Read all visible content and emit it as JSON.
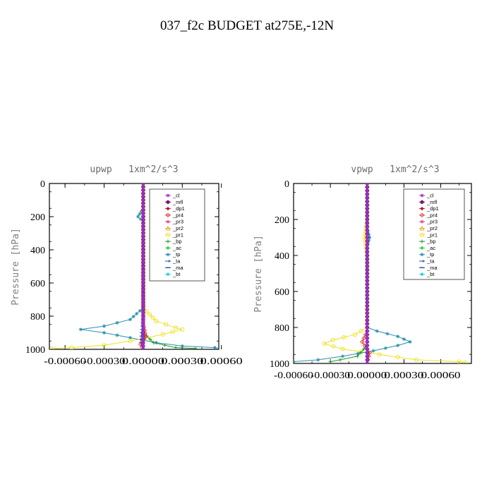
{
  "figure_title": "037_f2c  BUDGET at275E,-12N",
  "panels_meta": [
    {
      "title": "upwp   1xm^2/s^3",
      "ylabel": "Pressure [hPa]"
    },
    {
      "title": "vpwp   1xm^2/s^3",
      "ylabel": "Pressure [hPa]"
    }
  ],
  "legend": [
    {
      "name": "_cl",
      "color": "#9b30d0",
      "marker": "star"
    },
    {
      "name": "_mfl",
      "color": "#7a1070",
      "marker": "dot"
    },
    {
      "name": "_dp1",
      "color": "#b0102a",
      "marker": "diamond"
    },
    {
      "name": "_pr4",
      "color": "#e03a3a",
      "marker": "diamond-open"
    },
    {
      "name": "_pr3",
      "color": "#e04090",
      "marker": "star"
    },
    {
      "name": "_pr2",
      "color": "#f0a020",
      "marker": "triangle-open"
    },
    {
      "name": "_pr1",
      "color": "#f0e020",
      "marker": "circle-open"
    },
    {
      "name": "_bp",
      "color": "#1f9a2a",
      "marker": "plus"
    },
    {
      "name": "_ac",
      "color": "#30d040",
      "marker": "diamond"
    },
    {
      "name": "_tp",
      "color": "#2a8fb0",
      "marker": "star"
    },
    {
      "name": "_ta",
      "color": "#1050c0",
      "marker": "arrow"
    },
    {
      "name": "_ma",
      "color": "#1a3aa0",
      "marker": "dash"
    },
    {
      "name": "_bt",
      "color": "#20d0e0",
      "marker": "diamond"
    }
  ],
  "chart_data": [
    {
      "type": "line",
      "title": "upwp   1xm^2/s^3",
      "xlabel": "",
      "ylabel": "Pressure [hPa]",
      "xlim": [
        -0.00072,
        0.00058
      ],
      "ylim": [
        1000,
        0
      ],
      "yticks": [
        0,
        200,
        400,
        600,
        800,
        1000
      ],
      "xticks": [
        -0.0006,
        -0.0003,
        0.0,
        0.0003,
        0.0006
      ],
      "xticklabels": [
        "-0.00060",
        "-0.00030",
        "0.00000",
        "0.00030",
        "0.00060"
      ],
      "grid": false,
      "legend_position": "top-right",
      "series": [
        {
          "name": "_tp",
          "points": [
            [
              0,
              0
            ],
            [
              0,
              150
            ],
            [
              -4e-05,
              200
            ],
            [
              0,
              230
            ],
            [
              0,
              750
            ],
            [
              -0.0001,
              820
            ],
            [
              -0.0003,
              860
            ],
            [
              -0.00048,
              880
            ],
            [
              -0.0003,
              900
            ],
            [
              -0.0001,
              930
            ],
            [
              0.0001,
              960
            ],
            [
              0.0003,
              980
            ],
            [
              0.00055,
              990
            ],
            [
              0.0006,
              995
            ]
          ]
        },
        {
          "name": "_pr1",
          "points": [
            [
              0,
              0
            ],
            [
              0,
              750
            ],
            [
              0.0001,
              830
            ],
            [
              0.00025,
              870
            ],
            [
              0.0003,
              880
            ],
            [
              0.00015,
              910
            ],
            [
              -0.0001,
              950
            ],
            [
              -0.0003,
              975
            ],
            [
              -0.00055,
              990
            ],
            [
              -0.0007,
              995
            ]
          ]
        },
        {
          "name": "_bp",
          "points": [
            [
              0,
              0
            ],
            [
              0,
              900
            ],
            [
              8e-05,
              960
            ],
            [
              0.00025,
              990
            ],
            [
              0.0004,
              995
            ]
          ]
        },
        {
          "name": "_ta",
          "points": [
            [
              0,
              0
            ],
            [
              0,
              800
            ],
            [
              -2e-05,
              960
            ],
            [
              0,
              1000
            ]
          ]
        },
        {
          "name": "_pr4",
          "points": [
            [
              0,
              0
            ],
            [
              0,
              850
            ],
            [
              2e-05,
              920
            ],
            [
              -2e-05,
              970
            ],
            [
              0,
              1000
            ]
          ]
        },
        {
          "name": "_dp1",
          "points": [
            [
              0,
              0
            ],
            [
              0,
              1000
            ]
          ]
        },
        {
          "name": "_mfl",
          "points": [
            [
              0,
              0
            ],
            [
              0,
              1000
            ]
          ]
        },
        {
          "name": "_cl",
          "points": [
            [
              0,
              0
            ],
            [
              0,
              1000
            ]
          ]
        }
      ]
    },
    {
      "type": "line",
      "title": "vpwp   1xm^2/s^3",
      "xlabel": "",
      "ylabel": "Pressure [hPa]",
      "xlim": [
        -0.0006,
        0.00085
      ],
      "ylim": [
        1000,
        0
      ],
      "yticks": [
        0,
        200,
        400,
        600,
        800,
        1000
      ],
      "xticks": [
        -0.0006,
        -0.0003,
        0.0,
        0.0003,
        0.0006
      ],
      "xticklabels": [
        "-0.00060",
        "-0.00030",
        "0.00000",
        "0.00030",
        "0.00060"
      ],
      "grid": false,
      "legend_position": "top-right",
      "series": [
        {
          "name": "_pr1",
          "points": [
            [
              0,
              0
            ],
            [
              0,
              200
            ],
            [
              -2e-05,
              300
            ],
            [
              0,
              400
            ],
            [
              0,
              800
            ],
            [
              -0.0001,
              840
            ],
            [
              -0.00028,
              870
            ],
            [
              -0.00035,
              890
            ],
            [
              -0.0002,
              920
            ],
            [
              0.0001,
              950
            ],
            [
              0.0004,
              980
            ],
            [
              0.00075,
              990
            ],
            [
              0.0008,
              995
            ]
          ]
        },
        {
          "name": "_tp",
          "points": [
            [
              0,
              0
            ],
            [
              0,
              250
            ],
            [
              2e-05,
              300
            ],
            [
              0,
              350
            ],
            [
              0,
              800
            ],
            [
              8e-05,
              820
            ],
            [
              0.00025,
              850
            ],
            [
              0.00035,
              880
            ],
            [
              0.00025,
              900
            ],
            [
              5e-05,
              930
            ],
            [
              -0.0002,
              960
            ],
            [
              -0.0004,
              980
            ],
            [
              -0.0006,
              990
            ]
          ]
        },
        {
          "name": "_bp",
          "points": [
            [
              0,
              0
            ],
            [
              0,
              900
            ],
            [
              -8e-05,
              960
            ],
            [
              -0.00022,
              980
            ],
            [
              -0.0003,
              990
            ]
          ]
        },
        {
          "name": "_pr4",
          "points": [
            [
              0,
              0
            ],
            [
              0,
              820
            ],
            [
              -4e-05,
              880
            ],
            [
              2e-05,
              940
            ],
            [
              0,
              1000
            ]
          ]
        },
        {
          "name": "_ta",
          "points": [
            [
              0,
              0
            ],
            [
              0,
              1000
            ]
          ]
        },
        {
          "name": "_dp1",
          "points": [
            [
              0,
              0
            ],
            [
              0,
              1000
            ]
          ]
        },
        {
          "name": "_mfl",
          "points": [
            [
              0,
              0
            ],
            [
              0,
              1000
            ]
          ]
        },
        {
          "name": "_cl",
          "points": [
            [
              0,
              0
            ],
            [
              0,
              1000
            ]
          ]
        }
      ]
    }
  ]
}
